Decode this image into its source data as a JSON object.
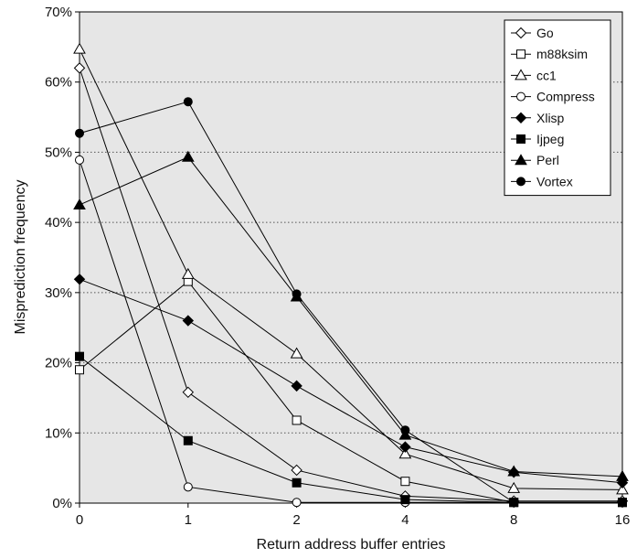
{
  "chart_data": {
    "type": "line",
    "categories": [
      "0",
      "1",
      "2",
      "4",
      "8",
      "16"
    ],
    "xlabel": "Return address buffer entries",
    "ylabel": "Misprediction frequency",
    "ylim": [
      0,
      70
    ],
    "yticks": [
      "0%",
      "10%",
      "20%",
      "30%",
      "40%",
      "50%",
      "60%",
      "70%"
    ],
    "grid": true,
    "legend_position": "top-right",
    "series": [
      {
        "name": "Go",
        "marker": "diamond-open",
        "values": [
          62,
          15.8,
          4.7,
          1.0,
          0.3,
          0.3
        ]
      },
      {
        "name": "m88ksim",
        "marker": "square-open",
        "values": [
          19,
          31.6,
          11.8,
          3.1,
          0.1,
          0.1
        ]
      },
      {
        "name": "cc1",
        "marker": "triangle-open",
        "values": [
          64.7,
          32.6,
          21.3,
          7.0,
          2.1,
          1.9
        ]
      },
      {
        "name": "Compress",
        "marker": "circle-open",
        "values": [
          48.9,
          2.3,
          0.1,
          0.1,
          0.1,
          0.1
        ]
      },
      {
        "name": "Xlisp",
        "marker": "diamond-filled",
        "values": [
          31.9,
          26,
          16.7,
          8.0,
          4.4,
          2.9
        ]
      },
      {
        "name": "Ijpeg",
        "marker": "square-filled",
        "values": [
          20.9,
          8.9,
          2.9,
          0.5,
          0.1,
          0.1
        ]
      },
      {
        "name": "Perl",
        "marker": "triangle-filled",
        "values": [
          42.5,
          49.3,
          29.4,
          9.7,
          4.5,
          3.8
        ]
      },
      {
        "name": "Vortex",
        "marker": "circle-filled",
        "values": [
          52.7,
          57.2,
          29.8,
          10.4,
          0.1,
          0.1
        ]
      }
    ]
  }
}
